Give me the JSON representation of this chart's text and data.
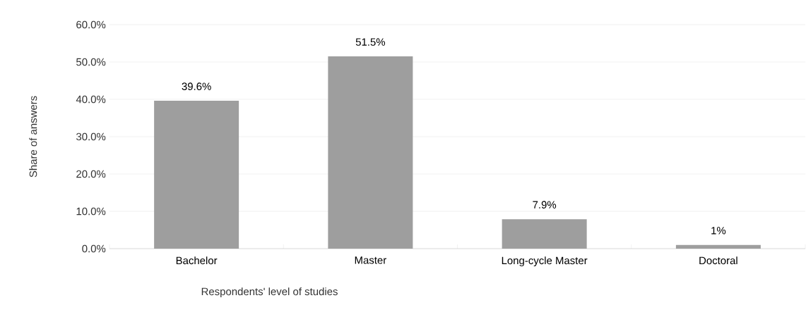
{
  "chart_data": {
    "type": "bar",
    "xlabel": "Respondents' level of studies",
    "ylabel": "Share of answers",
    "categories": [
      "Bachelor",
      "Master",
      "Long-cycle Master",
      "Doctoral"
    ],
    "values": [
      39.6,
      51.5,
      7.9,
      1
    ],
    "value_labels": [
      "39.6%",
      "51.5%",
      "7.9%",
      "1%"
    ],
    "color": "#9e9e9e",
    "ylim": [
      0,
      60
    ],
    "yticks": [
      {
        "value": 0,
        "label": "0.0%"
      },
      {
        "value": 10,
        "label": "10.0%"
      },
      {
        "value": 20,
        "label": "20.0%"
      },
      {
        "value": 30,
        "label": "30.0%"
      },
      {
        "value": 40,
        "label": "40.0%"
      },
      {
        "value": 50,
        "label": "50.0%"
      },
      {
        "value": 60,
        "label": "60.0%"
      }
    ],
    "grid": "y"
  }
}
